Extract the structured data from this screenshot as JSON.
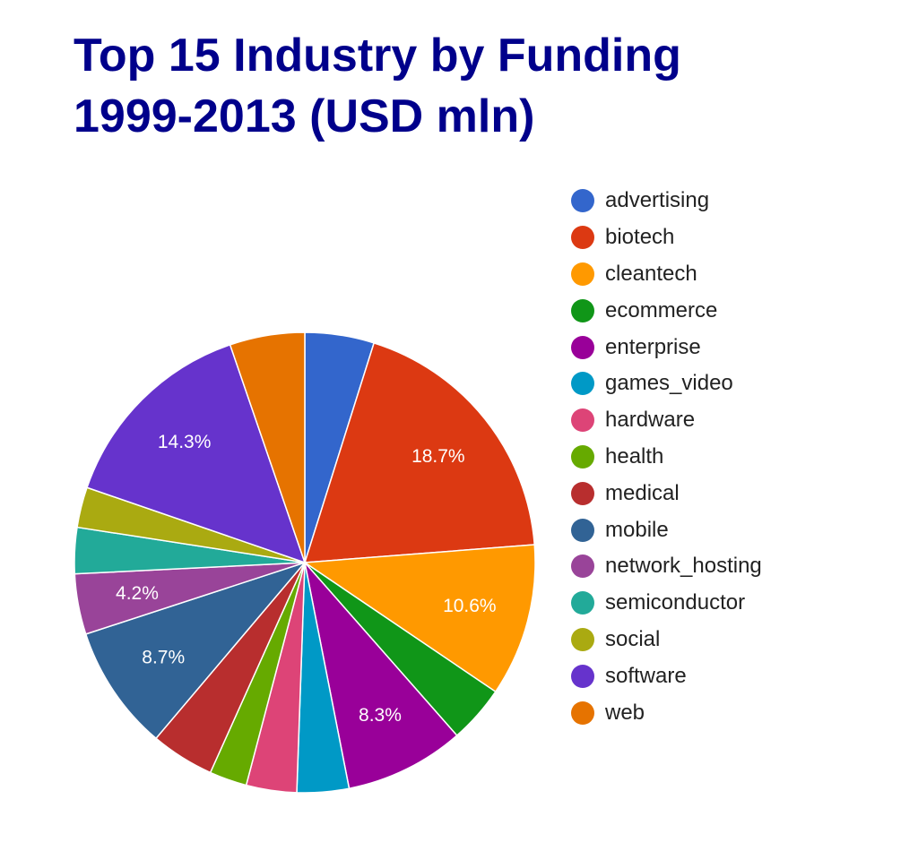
{
  "chart_data": {
    "type": "pie",
    "title_lines": [
      "Top 15 Industry by Funding",
      "1999-2013 (USD mln)"
    ],
    "legend_position": "right",
    "start_angle_deg": 0,
    "slices": [
      {
        "label": "advertising",
        "value": 4.8,
        "color": "#3366cc",
        "data_label": ""
      },
      {
        "label": "biotech",
        "value": 18.7,
        "color": "#dc3912",
        "data_label": "18.7%"
      },
      {
        "label": "cleantech",
        "value": 10.6,
        "color": "#ff9900",
        "data_label": "10.6%"
      },
      {
        "label": "ecommerce",
        "value": 4.0,
        "color": "#109618",
        "data_label": ""
      },
      {
        "label": "enterprise",
        "value": 8.3,
        "color": "#990099",
        "data_label": "8.3%"
      },
      {
        "label": "games_video",
        "value": 3.6,
        "color": "#0099c6",
        "data_label": ""
      },
      {
        "label": "hardware",
        "value": 3.5,
        "color": "#dd4477",
        "data_label": ""
      },
      {
        "label": "health",
        "value": 2.6,
        "color": "#66aa00",
        "data_label": ""
      },
      {
        "label": "medical",
        "value": 4.4,
        "color": "#b82e2e",
        "data_label": ""
      },
      {
        "label": "mobile",
        "value": 8.7,
        "color": "#316395",
        "data_label": "8.7%"
      },
      {
        "label": "network_hosting",
        "value": 4.2,
        "color": "#994499",
        "data_label": "4.2%"
      },
      {
        "label": "semiconductor",
        "value": 3.2,
        "color": "#22aa99",
        "data_label": ""
      },
      {
        "label": "social",
        "value": 2.8,
        "color": "#aaaa11",
        "data_label": ""
      },
      {
        "label": "software",
        "value": 14.3,
        "color": "#6633cc",
        "data_label": "14.3%"
      },
      {
        "label": "web",
        "value": 5.2,
        "color": "#e67300",
        "data_label": ""
      }
    ]
  }
}
